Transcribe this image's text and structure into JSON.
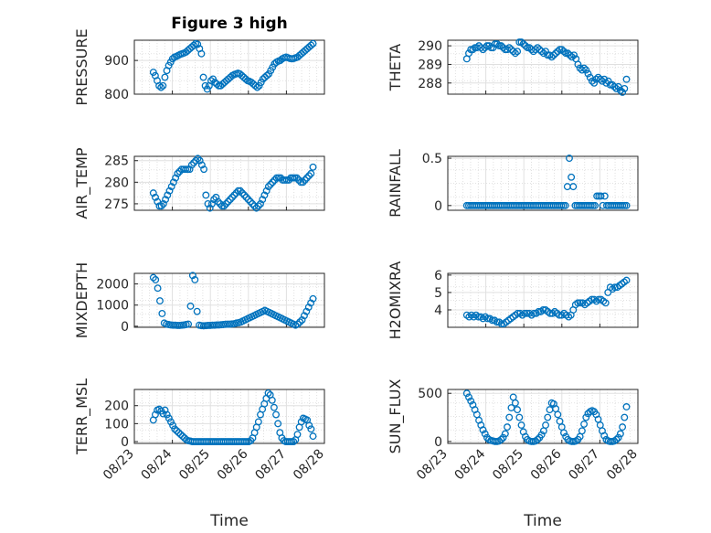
{
  "figure": {
    "title": "Figure 3 high",
    "xlabel": "Time",
    "marker_color": "#0072BD"
  },
  "chart_data": [
    {
      "type": "scatter",
      "name": "pressure",
      "ylabel": "PRESSURE",
      "ylim": [
        800,
        960
      ],
      "yticks": [
        800,
        900
      ],
      "ytick_labels": [
        "800",
        "900"
      ],
      "x_tick_labels": [],
      "y": [
        865,
        855,
        840,
        825,
        820,
        825,
        850,
        870,
        885,
        895,
        905,
        910,
        912,
        915,
        918,
        920,
        922,
        925,
        930,
        935,
        940,
        945,
        950,
        948,
        935,
        920,
        850,
        825,
        815,
        825,
        840,
        845,
        835,
        830,
        825,
        825,
        830,
        835,
        840,
        845,
        850,
        855,
        858,
        860,
        862,
        860,
        855,
        850,
        845,
        840,
        838,
        835,
        830,
        825,
        820,
        825,
        835,
        845,
        850,
        855,
        860,
        870,
        880,
        890,
        895,
        898,
        900,
        905,
        908,
        910,
        908,
        906,
        905,
        906,
        908,
        910,
        915,
        920,
        925,
        930,
        935,
        940,
        945,
        950
      ]
    },
    {
      "type": "scatter",
      "name": "theta",
      "ylabel": "THETA",
      "ylim": [
        287.4,
        290.3
      ],
      "yticks": [
        288,
        289,
        290
      ],
      "ytick_labels": [
        "288",
        "289",
        "290"
      ],
      "x_tick_labels": [],
      "y": [
        289.3,
        289.6,
        289.8,
        289.8,
        289.9,
        289.9,
        290.0,
        289.9,
        289.8,
        289.9,
        290.0,
        290.0,
        289.9,
        289.9,
        290.1,
        290.1,
        290.0,
        290.0,
        289.9,
        289.8,
        289.8,
        289.9,
        289.8,
        289.7,
        289.6,
        289.7,
        290.2,
        290.2,
        290.1,
        290.0,
        289.9,
        289.9,
        289.8,
        289.7,
        289.8,
        289.9,
        289.8,
        289.7,
        289.6,
        289.7,
        289.5,
        289.5,
        289.4,
        289.5,
        289.6,
        289.7,
        289.8,
        289.8,
        289.7,
        289.6,
        289.6,
        289.5,
        289.4,
        289.5,
        289.3,
        289.0,
        288.8,
        288.7,
        288.8,
        288.7,
        288.5,
        288.3,
        288.1,
        288.0,
        288.2,
        288.3,
        288.2,
        288.1,
        288.2,
        288.0,
        288.1,
        287.9,
        287.9,
        287.8,
        287.7,
        287.8,
        287.6,
        287.5,
        287.7,
        288.2
      ]
    },
    {
      "type": "scatter",
      "name": "air_temp",
      "ylabel": "AIR_TEMP",
      "ylim": [
        273.5,
        286
      ],
      "yticks": [
        275,
        280,
        285
      ],
      "ytick_labels": [
        "275",
        "280",
        "285"
      ],
      "x_tick_labels": [],
      "y": [
        277.5,
        276.5,
        275.5,
        274.5,
        274.5,
        275,
        276,
        277,
        278,
        279,
        280,
        281,
        282,
        282.5,
        283,
        283,
        283,
        283,
        283,
        284,
        284.5,
        285,
        285.5,
        285,
        284,
        283,
        277,
        275,
        274,
        275,
        276,
        276.5,
        275.5,
        275,
        274.5,
        274.5,
        275,
        275.5,
        276,
        276.5,
        277,
        277.5,
        278,
        278,
        277.5,
        277,
        276.5,
        276,
        275.5,
        275,
        274.5,
        274,
        274.5,
        275,
        276,
        277,
        278,
        279,
        279.5,
        280,
        280.5,
        281,
        281,
        281,
        280.5,
        280.5,
        280.5,
        280.5,
        281,
        281,
        281,
        281,
        280.5,
        280,
        280,
        280.5,
        281,
        281.5,
        282,
        283.5
      ]
    },
    {
      "type": "scatter",
      "name": "rainfall",
      "ylabel": "RAINFALL",
      "ylim": [
        -0.05,
        0.52
      ],
      "yticks": [
        0,
        0.5
      ],
      "ytick_labels": [
        "0",
        "0.5"
      ],
      "x_tick_labels": [],
      "y": [
        0,
        0,
        0,
        0,
        0,
        0,
        0,
        0,
        0,
        0,
        0,
        0,
        0,
        0,
        0,
        0,
        0,
        0,
        0,
        0,
        0,
        0,
        0,
        0,
        0,
        0,
        0,
        0,
        0,
        0,
        0,
        0,
        0,
        0,
        0,
        0,
        0,
        0,
        0,
        0,
        0,
        0,
        0,
        0,
        0,
        0,
        0,
        0,
        0,
        0,
        0,
        0.2,
        0.5,
        0.3,
        0.2,
        0,
        0,
        0,
        0,
        0,
        0,
        0,
        0,
        0,
        0,
        0,
        0.1,
        0.1,
        0.1,
        0,
        0.1,
        0,
        0,
        0,
        0,
        0,
        0,
        0,
        0,
        0,
        0,
        0
      ]
    },
    {
      "type": "scatter",
      "name": "mixdepth",
      "ylabel": "MIXDEPTH",
      "ylim": [
        -50,
        2500
      ],
      "yticks": [
        0,
        1000,
        2000
      ],
      "ytick_labels": [
        "0",
        "1000",
        "2000"
      ],
      "x_tick_labels": [],
      "y": [
        2300,
        2200,
        1800,
        1200,
        600,
        150,
        100,
        80,
        60,
        50,
        50,
        40,
        40,
        50,
        60,
        80,
        100,
        950,
        2400,
        2200,
        700,
        50,
        30,
        20,
        30,
        40,
        40,
        50,
        50,
        60,
        60,
        70,
        80,
        90,
        100,
        100,
        110,
        120,
        150,
        170,
        200,
        250,
        300,
        350,
        400,
        450,
        500,
        550,
        600,
        650,
        700,
        750,
        700,
        650,
        600,
        550,
        500,
        450,
        400,
        350,
        300,
        250,
        200,
        150,
        100,
        50,
        100,
        200,
        300,
        500,
        700,
        900,
        1100,
        1300
      ]
    },
    {
      "type": "scatter",
      "name": "h2omixra",
      "ylabel": "H2OMIXRA",
      "ylim": [
        3.0,
        6.1
      ],
      "yticks": [
        4,
        5,
        6
      ],
      "ytick_labels": [
        "4",
        "5",
        "6"
      ],
      "x_tick_labels": [],
      "y": [
        3.7,
        3.6,
        3.7,
        3.6,
        3.7,
        3.6,
        3.6,
        3.5,
        3.6,
        3.5,
        3.5,
        3.4,
        3.4,
        3.3,
        3.3,
        3.2,
        3.2,
        3.3,
        3.4,
        3.5,
        3.6,
        3.7,
        3.8,
        3.8,
        3.7,
        3.8,
        3.8,
        3.8,
        3.7,
        3.8,
        3.8,
        3.9,
        3.9,
        4.0,
        4.0,
        3.9,
        3.8,
        3.8,
        3.9,
        3.8,
        3.7,
        3.7,
        3.8,
        3.7,
        3.6,
        3.7,
        4.0,
        4.3,
        4.4,
        4.4,
        4.4,
        4.3,
        4.4,
        4.5,
        4.6,
        4.6,
        4.5,
        4.6,
        4.6,
        4.5,
        4.4,
        5.0,
        5.3,
        5.2,
        5.3,
        5.3,
        5.4,
        5.5,
        5.6,
        5.7
      ]
    },
    {
      "type": "scatter",
      "name": "terr_msl",
      "ylabel": "TERR_MSL",
      "ylim": [
        -10,
        290
      ],
      "yticks": [
        0,
        100,
        200
      ],
      "ytick_labels": [
        "0",
        "100",
        "200"
      ],
      "x_tick_labels": [
        "08/23",
        "08/24",
        "08/25",
        "08/26",
        "08/27",
        "08/28"
      ],
      "y": [
        120,
        150,
        175,
        180,
        170,
        155,
        175,
        150,
        130,
        110,
        90,
        70,
        60,
        50,
        40,
        30,
        20,
        10,
        5,
        3,
        0,
        0,
        0,
        0,
        0,
        0,
        0,
        0,
        0,
        0,
        0,
        0,
        0,
        0,
        0,
        0,
        0,
        0,
        0,
        0,
        0,
        0,
        0,
        0,
        0,
        0,
        0,
        0,
        0,
        0,
        5,
        20,
        50,
        80,
        110,
        150,
        180,
        210,
        240,
        270,
        260,
        230,
        190,
        150,
        100,
        50,
        20,
        5,
        0,
        0,
        0,
        0,
        0,
        10,
        40,
        80,
        110,
        130,
        125,
        120,
        90,
        70,
        30
      ]
    },
    {
      "type": "scatter",
      "name": "sun_flux",
      "ylabel": "SUN_FLUX",
      "ylim": [
        -20,
        540
      ],
      "yticks": [
        0,
        500
      ],
      "ytick_labels": [
        "0",
        "500"
      ],
      "x_tick_labels": [
        "08/23",
        "08/24",
        "08/25",
        "08/26",
        "08/27",
        "08/28"
      ],
      "y": [
        500,
        460,
        420,
        380,
        330,
        280,
        220,
        170,
        120,
        80,
        40,
        20,
        10,
        5,
        0,
        0,
        5,
        20,
        40,
        80,
        150,
        250,
        350,
        460,
        400,
        330,
        250,
        170,
        100,
        50,
        20,
        5,
        0,
        0,
        5,
        20,
        40,
        70,
        110,
        170,
        250,
        330,
        400,
        390,
        340,
        280,
        210,
        150,
        90,
        50,
        20,
        5,
        0,
        0,
        5,
        20,
        50,
        110,
        180,
        250,
        290,
        310,
        320,
        310,
        280,
        230,
        170,
        110,
        60,
        20,
        5,
        0,
        0,
        5,
        20,
        40,
        80,
        150,
        250,
        360
      ]
    }
  ]
}
